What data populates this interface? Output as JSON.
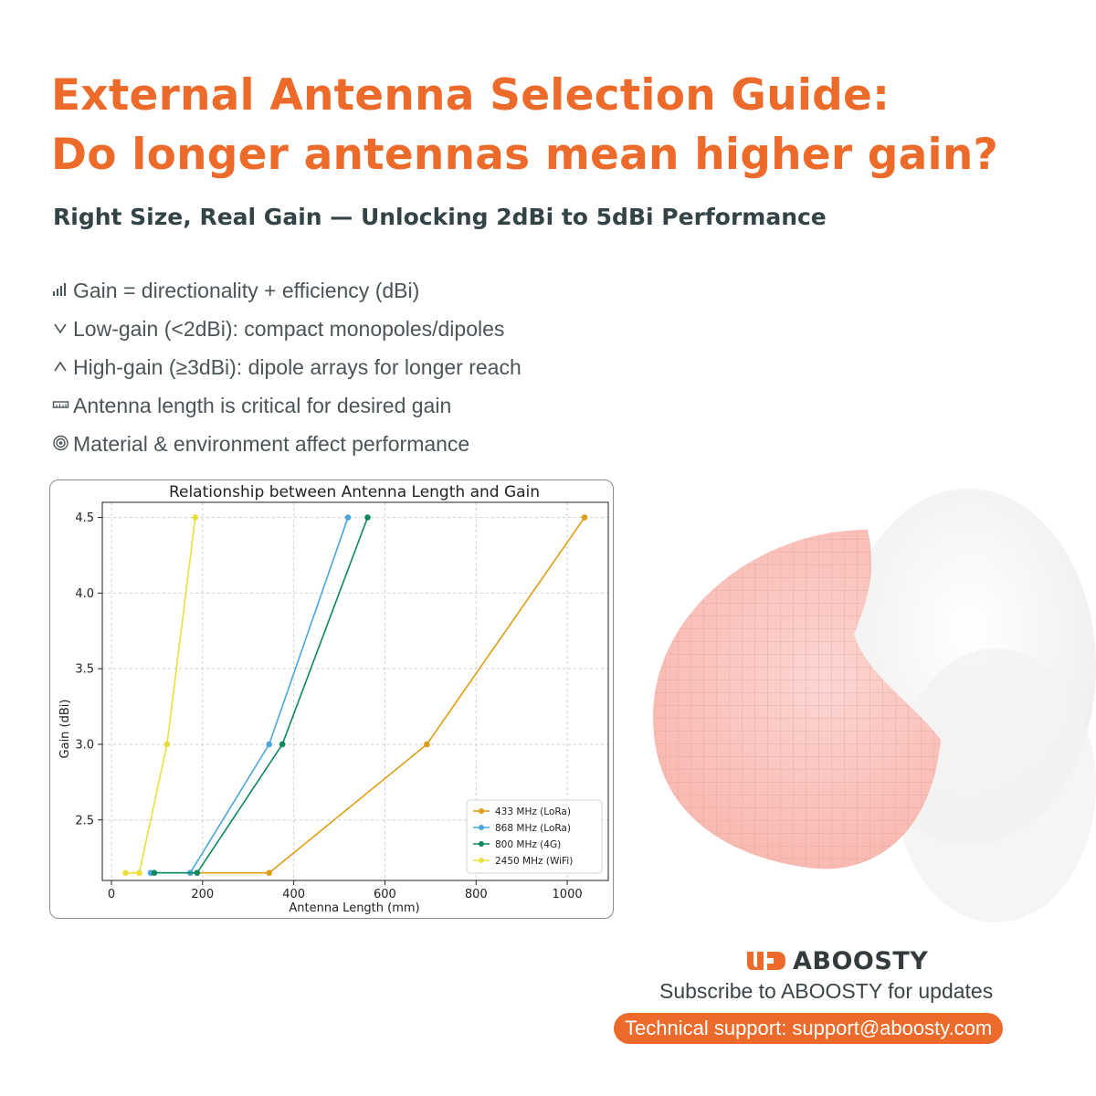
{
  "header": {
    "title_line1": "External Antenna Selection Guide:",
    "title_line2": "Do longer antennas mean higher gain?",
    "subtitle": "Right Size, Real Gain — Unlocking 2dBi to 5dBi Performance"
  },
  "bullets": [
    {
      "icon": "signal-bars-icon",
      "text": "Gain = directionality + efficiency (dBi)"
    },
    {
      "icon": "chevron-down-icon",
      "text": "Low-gain (<2dBi): compact monopoles/dipoles"
    },
    {
      "icon": "chevron-up-icon",
      "text": "High-gain (≥3dBi): dipole arrays for longer reach"
    },
    {
      "icon": "ruler-icon",
      "text": "Antenna length is critical for desired gain"
    },
    {
      "icon": "radar-icon",
      "text": "Material & environment affect performance"
    }
  ],
  "brand": {
    "name": "ABOOSTY",
    "subscribe": "Subscribe to ABOOSTY for updates",
    "support": "Technical support: support@aboosty.com",
    "accent": "#ec6a2a"
  },
  "chart_data": {
    "type": "line",
    "title": "Relationship between Antenna Length and Gain",
    "xlabel": "Antenna Length (mm)",
    "ylabel": "Gain (dBi)",
    "xlim": [
      -20,
      1090
    ],
    "ylim": [
      2.1,
      4.6
    ],
    "xticks": [
      0,
      200,
      400,
      600,
      800,
      1000
    ],
    "yticks": [
      2.5,
      3.0,
      3.5,
      4.0,
      4.5
    ],
    "grid": true,
    "legend_position": "lower-right",
    "series": [
      {
        "name": "433 MHz (LoRa)",
        "color": "#e09c10",
        "points": [
          [
            173,
            2.15
          ],
          [
            346,
            2.15
          ],
          [
            692,
            3.0
          ],
          [
            1038,
            4.5
          ]
        ]
      },
      {
        "name": "868 MHz (LoRa)",
        "color": "#4aa6dc",
        "points": [
          [
            86,
            2.15
          ],
          [
            173,
            2.15
          ],
          [
            346,
            3.0
          ],
          [
            519,
            4.5
          ]
        ]
      },
      {
        "name": "800 MHz (4G)",
        "color": "#0d8a5c",
        "points": [
          [
            94,
            2.15
          ],
          [
            188,
            2.15
          ],
          [
            375,
            3.0
          ],
          [
            562,
            4.5
          ]
        ]
      },
      {
        "name": "2450 MHz (WiFi)",
        "color": "#e8e03a",
        "points": [
          [
            31,
            2.15
          ],
          [
            61,
            2.15
          ],
          [
            122,
            3.0
          ],
          [
            184,
            4.5
          ]
        ]
      }
    ]
  }
}
